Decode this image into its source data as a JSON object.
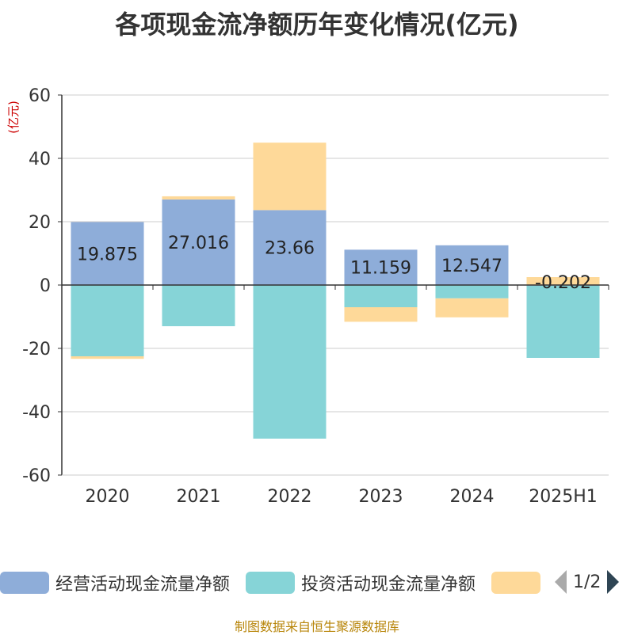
{
  "title": "各项现金流净额历年变化情况(亿元)",
  "source_note": "制图数据来自恒生聚源数据库",
  "legend": {
    "page_text": "1/2",
    "prev_label": "previous-page",
    "next_label": "next-page"
  },
  "colors": {
    "operating": "#8eadd9",
    "investing": "#86d4d7",
    "financing": "#fed999",
    "grid": "#cccccc",
    "axis": "#333333",
    "unit": "#cc0000",
    "pager_prev": "#aaaaaa",
    "pager_next": "#2f4554"
  },
  "chart_data": {
    "type": "bar",
    "stacked": true,
    "title": "各项现金流净额历年变化情况(亿元)",
    "ylabel": "(亿元)",
    "xlabel": "",
    "ylim": [
      -60,
      60
    ],
    "yticks": [
      -60,
      -40,
      -20,
      0,
      20,
      40,
      60
    ],
    "grid": true,
    "legend_position": "bottom",
    "categories": [
      "2020",
      "2021",
      "2022",
      "2023",
      "2024",
      "2025H1"
    ],
    "series": [
      {
        "name": "经营活动现金流量净额",
        "values": [
          19.875,
          27.016,
          23.66,
          11.159,
          12.547,
          -0.2
        ],
        "labels": [
          "19.875",
          "27.016",
          "23.66",
          "11.159",
          "12.547",
          "-0.202"
        ]
      },
      {
        "name": "投资活动现金流量净额",
        "values": [
          -22.5,
          -13,
          -48.5,
          -7,
          -4.2,
          -22.8
        ]
      },
      {
        "name": "",
        "values": [
          -0.8,
          1,
          21.3,
          -4.6,
          -6,
          2.5
        ]
      }
    ]
  }
}
